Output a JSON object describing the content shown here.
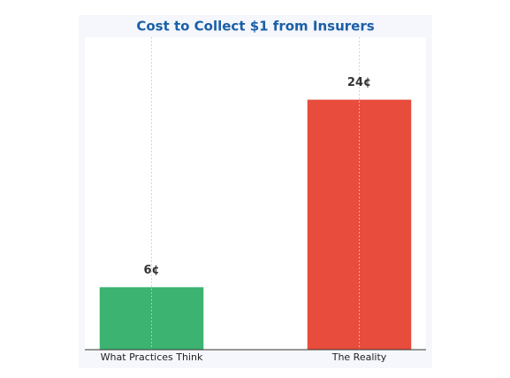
{
  "chart_data": {
    "type": "bar",
    "title": "Cost to Collect $1 from Insurers",
    "categories": [
      "What Practices Think",
      "The Reality"
    ],
    "values": [
      6,
      24
    ],
    "value_labels": [
      "6¢",
      "24¢"
    ],
    "colors": [
      "#3cb371",
      "#e74c3c"
    ],
    "ylim": [
      0,
      30
    ],
    "grid": true
  }
}
